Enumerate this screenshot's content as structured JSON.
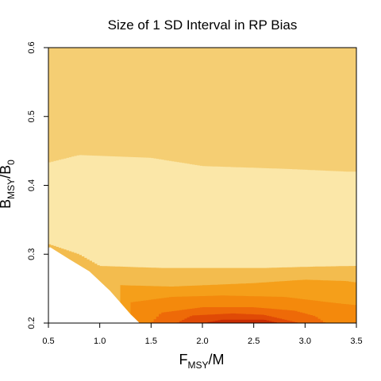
{
  "chart_data": {
    "type": "heatmap",
    "title": "Size of 1 SD Interval in RP Bias",
    "xlabel": {
      "main": "F",
      "sub": "MSY",
      "tail": "/M"
    },
    "ylabel": {
      "main": "B",
      "sub": "MSY",
      "mid": "/B",
      "sub2": "0"
    },
    "xlim": [
      0.5,
      3.5
    ],
    "ylim": [
      0.2,
      0.6
    ],
    "x_ticks": [
      "0.5",
      "1.0",
      "1.5",
      "2.0",
      "2.5",
      "3.0",
      "3.5"
    ],
    "y_ticks": [
      "0.2",
      "0.3",
      "0.4",
      "0.5",
      "0.6"
    ],
    "grid": false,
    "legend": "none",
    "colors": [
      "#FBE7A8",
      "#F5CE73",
      "#F3BC4E",
      "#F59F1A",
      "#F4890C",
      "#EE6A08",
      "#E04A06",
      "#C82C02"
    ],
    "infeasible_boundary": [
      [
        0.52,
        0.31
      ],
      [
        0.7,
        0.293
      ],
      [
        0.9,
        0.275
      ],
      [
        1.1,
        0.247
      ],
      [
        1.3,
        0.213
      ],
      [
        1.39,
        0.2
      ]
    ],
    "levels_from_top": [
      {
        "level": 1,
        "color": "#F5CE73",
        "upper_boundary": [
          [
            0.5,
            0.6
          ],
          [
            3.5,
            0.6
          ]
        ]
      },
      {
        "level": 0,
        "color": "#FBE7A8",
        "upper_boundary": [
          [
            0.5,
            0.433
          ],
          [
            0.8,
            0.444
          ],
          [
            1.5,
            0.44
          ],
          [
            2.0,
            0.428
          ],
          [
            2.8,
            0.424
          ],
          [
            3.4,
            0.42
          ],
          [
            3.5,
            0.42
          ]
        ]
      },
      {
        "level": 2,
        "color": "#F3BC4E",
        "upper_boundary": [
          [
            0.5,
            0.315
          ],
          [
            0.8,
            0.3
          ],
          [
            1.0,
            0.283
          ],
          [
            1.6,
            0.28
          ],
          [
            2.6,
            0.28
          ],
          [
            3.1,
            0.282
          ],
          [
            3.5,
            0.283
          ]
        ]
      },
      {
        "level": 3,
        "color": "#F59F1A",
        "upper_boundary": [
          [
            1.2,
            0.255
          ],
          [
            1.7,
            0.253
          ],
          [
            2.5,
            0.258
          ],
          [
            3.0,
            0.263
          ],
          [
            3.4,
            0.261
          ],
          [
            3.5,
            0.259
          ]
        ]
      },
      {
        "level": 4,
        "color": "#F4890C",
        "upper_boundary": [
          [
            1.3,
            0.23
          ],
          [
            1.7,
            0.238
          ],
          [
            2.2,
            0.24
          ],
          [
            2.8,
            0.238
          ],
          [
            3.3,
            0.229
          ],
          [
            3.5,
            0.226
          ]
        ]
      },
      {
        "level": 5,
        "color": "#EE6A08",
        "upper_boundary": [
          [
            1.5,
            0.2
          ],
          [
            1.6,
            0.215
          ],
          [
            2.0,
            0.223
          ],
          [
            2.5,
            0.223
          ],
          [
            2.9,
            0.218
          ],
          [
            3.1,
            0.21
          ],
          [
            3.2,
            0.2
          ]
        ]
      },
      {
        "level": 6,
        "color": "#E04A06",
        "upper_boundary": [
          [
            1.75,
            0.2
          ],
          [
            1.9,
            0.211
          ],
          [
            2.3,
            0.214
          ],
          [
            2.6,
            0.212
          ],
          [
            2.95,
            0.2
          ]
        ]
      },
      {
        "level": 7,
        "color": "#C82C02",
        "upper_boundary": [
          [
            2.0,
            0.2
          ],
          [
            2.2,
            0.205
          ],
          [
            2.6,
            0.205
          ],
          [
            2.75,
            0.2
          ]
        ]
      }
    ]
  }
}
